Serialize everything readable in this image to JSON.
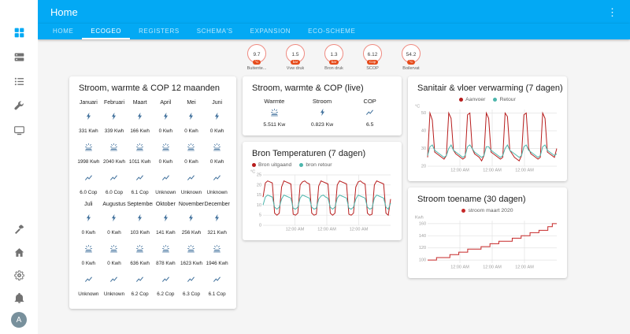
{
  "app": {
    "title": "Home",
    "menu_icon": "dots-vertical-icon",
    "accent_color": "#03a9f4",
    "tabs": [
      {
        "label": "HOME",
        "active": false
      },
      {
        "label": "ECOGEO",
        "active": true
      },
      {
        "label": "REGISTERS",
        "active": false
      },
      {
        "label": "SCHEMA'S",
        "active": false
      },
      {
        "label": "EXPANSION",
        "active": false
      },
      {
        "label": "ECO-SCHEME",
        "active": false
      }
    ]
  },
  "sidebar": {
    "top": [
      {
        "name": "overview",
        "icon": "grid",
        "active": true
      },
      {
        "name": "server",
        "icon": "server",
        "active": false
      },
      {
        "name": "logbook",
        "icon": "list",
        "active": false
      },
      {
        "name": "tools",
        "icon": "wrench",
        "active": false
      },
      {
        "name": "media",
        "icon": "screen",
        "active": false
      }
    ],
    "bottom": [
      {
        "name": "developer-tools",
        "icon": "hammer"
      },
      {
        "name": "supervisor",
        "icon": "home"
      },
      {
        "name": "configuration",
        "icon": "gear"
      },
      {
        "name": "notifications",
        "icon": "bell"
      },
      {
        "name": "user",
        "avatar": true,
        "label": "A"
      }
    ]
  },
  "badges": [
    {
      "value": "9.7",
      "unit": "°C",
      "name": "Buitente..."
    },
    {
      "value": "1.5",
      "unit": "bar",
      "name": "Vvw druk"
    },
    {
      "value": "1.3",
      "unit": "bar",
      "name": "Bron druk"
    },
    {
      "value": "6.12",
      "unit": "Cop",
      "name": "SCOP"
    },
    {
      "value": "54.2",
      "unit": "°C",
      "name": "Boilervat"
    }
  ],
  "cards": {
    "monthly": {
      "title": "Stroom, warmte & COP 12 maanden",
      "rows": [
        {
          "type": "labels",
          "cells": [
            "Januari",
            "Februari",
            "Maart",
            "April",
            "Mei",
            "Juni"
          ]
        },
        {
          "type": "icons",
          "icon": "flash"
        },
        {
          "type": "values",
          "cells": [
            "331 Kwh",
            "339 Kwh",
            "166 Kwh",
            "0 Kwh",
            "0 Kwh",
            "0 Kwh"
          ]
        },
        {
          "type": "icons",
          "icon": "solar"
        },
        {
          "type": "values",
          "cells": [
            "1998 Kwh",
            "2040 Kwh",
            "1011 Kwh",
            "0 Kwh",
            "0 Kwh",
            "0 Kwh"
          ]
        },
        {
          "type": "icons",
          "icon": "chart"
        },
        {
          "type": "values",
          "cells": [
            "6.0 Cop",
            "6.0 Cop",
            "6.1 Cop",
            "Unknown",
            "Unknown",
            "Unknown"
          ]
        },
        {
          "type": "labels",
          "cells": [
            "Juli",
            "Augustus",
            "September",
            "Oktober",
            "November",
            "December"
          ]
        },
        {
          "type": "icons",
          "icon": "flash"
        },
        {
          "type": "values",
          "cells": [
            "0 Kwh",
            "0 Kwh",
            "103 Kwh",
            "141 Kwh",
            "256 Kwh",
            "321 Kwh"
          ]
        },
        {
          "type": "icons",
          "icon": "solar"
        },
        {
          "type": "values",
          "cells": [
            "0 Kwh",
            "0 Kwh",
            "636 Kwh",
            "878 Kwh",
            "1623 Kwh",
            "1946 Kwh"
          ]
        },
        {
          "type": "icons",
          "icon": "chart"
        },
        {
          "type": "values",
          "cells": [
            "Unknown",
            "Unknown",
            "6.2 Cop",
            "6.2 Cop",
            "6.3 Cop",
            "6.1 Cop"
          ]
        }
      ]
    },
    "live": {
      "title": "Stroom, warmte & COP (live)",
      "items": [
        {
          "label": "Warmte",
          "icon": "solar",
          "value": "5.511 Kw"
        },
        {
          "label": "Stroom",
          "icon": "flash",
          "value": "0.823 Kw"
        },
        {
          "label": "COP",
          "icon": "chart",
          "value": "6.5"
        }
      ]
    },
    "bron": {
      "title": "Bron Temperaturen (7 dagen)"
    },
    "sanitair": {
      "title": "Sanitair & vloer verwarming (7 dagen)"
    },
    "stroom": {
      "title": "Stroom toename (30 dagen)"
    }
  },
  "chart_data": [
    {
      "id": "bron",
      "type": "line",
      "title": "Bron Temperaturen (7 dagen)",
      "ylabel": "°C",
      "ylim": [
        0,
        25
      ],
      "yticks": [
        0,
        5,
        10,
        15,
        20,
        25
      ],
      "xticklabels": [
        "12:00 AM",
        "12:00 AM",
        "12:00 AM"
      ],
      "legend_position": "top-left",
      "grid": true,
      "series": [
        {
          "name": "Bron uitgaand",
          "color": "#b71c1c",
          "values": [
            14,
            21,
            22,
            21.5,
            21,
            6,
            5,
            6,
            19,
            22,
            21.5,
            21,
            20.5,
            5.5,
            5,
            6,
            20,
            21.5,
            22,
            21,
            20.5,
            6,
            5,
            5.5,
            19.5,
            22,
            21.5,
            21,
            20.5,
            6,
            5,
            6,
            20,
            22,
            21.5,
            21,
            20.5,
            5.5,
            5,
            6,
            19,
            21.5,
            22,
            21,
            20.5,
            6,
            5,
            5.5,
            20,
            22,
            21.5,
            21,
            20.5,
            6,
            5,
            13
          ]
        },
        {
          "name": "bron retour",
          "color": "#4db6ac",
          "values": [
            10,
            14,
            15,
            14.5,
            14,
            9,
            8,
            9,
            13,
            15,
            14.5,
            14,
            13.5,
            8.5,
            8,
            9,
            13.5,
            15,
            14.5,
            14,
            13.5,
            9,
            8,
            8.5,
            13,
            14.5,
            15,
            14,
            13.5,
            9,
            8,
            9,
            13.5,
            15,
            14.5,
            14,
            13.5,
            8.5,
            8,
            9,
            13,
            15,
            14.5,
            14,
            13.5,
            9,
            8,
            8.5,
            13.5,
            15,
            14.5,
            14,
            13.5,
            9,
            8,
            11
          ]
        }
      ]
    },
    {
      "id": "sanitair",
      "type": "line",
      "title": "Sanitair & vloer verwarming (7 dagen)",
      "ylabel": "°C",
      "ylim": [
        20,
        52
      ],
      "yticks": [
        20,
        30,
        40,
        50
      ],
      "xticklabels": [
        "12:00 AM",
        "12:00 AM",
        "12:00 AM"
      ],
      "legend_position": "top",
      "grid": true,
      "series": [
        {
          "name": "Aanvoer",
          "color": "#b71c1c",
          "values": [
            25,
            50,
            46,
            28,
            27,
            26,
            25,
            24,
            26,
            50,
            47,
            29,
            27,
            26,
            25,
            24,
            25,
            49,
            50,
            30,
            27,
            26,
            25,
            23,
            26,
            50,
            47,
            28,
            27,
            26,
            25,
            24,
            25,
            50,
            48,
            29,
            27,
            25,
            24,
            23,
            26,
            49,
            50,
            30,
            27,
            26,
            25,
            24,
            25,
            50,
            47,
            28,
            27,
            26,
            25,
            30
          ]
        },
        {
          "name": "Retour",
          "color": "#4db6ac",
          "values": [
            26,
            31,
            32,
            29,
            28,
            27,
            26,
            25,
            26,
            30,
            32,
            29,
            28,
            27,
            26,
            25,
            26,
            31,
            32,
            30,
            28,
            27,
            26,
            25,
            26,
            31,
            31,
            29,
            28,
            27,
            26,
            25,
            26,
            30,
            32,
            29,
            28,
            27,
            26,
            25,
            26,
            31,
            32,
            29,
            28,
            27,
            26,
            25,
            26,
            31,
            32,
            29,
            28,
            27,
            26,
            27
          ]
        }
      ]
    },
    {
      "id": "stroom",
      "type": "line",
      "step": true,
      "title": "Stroom toename (30 dagen)",
      "ylabel": "Kwh",
      "ylim": [
        95,
        165
      ],
      "yticks": [
        100,
        120,
        140,
        160
      ],
      "xticklabels": [
        "12:00 AM",
        "12:00 AM",
        "12:00 AM"
      ],
      "legend_position": "top",
      "grid": true,
      "series": [
        {
          "name": "stroom maart 2020",
          "color": "#c62828",
          "values": [
            100,
            100,
            104,
            104,
            104,
            109,
            109,
            113,
            113,
            118,
            118,
            118,
            122,
            122,
            127,
            127,
            131,
            131,
            131,
            136,
            136,
            140,
            140,
            145,
            145,
            149,
            149,
            155,
            160,
            160
          ]
        }
      ]
    }
  ],
  "colors": {
    "entity_icon": "#44739e",
    "badge_label": "#e64a19",
    "red_line": "#b71c1c",
    "teal_line": "#4db6ac"
  }
}
